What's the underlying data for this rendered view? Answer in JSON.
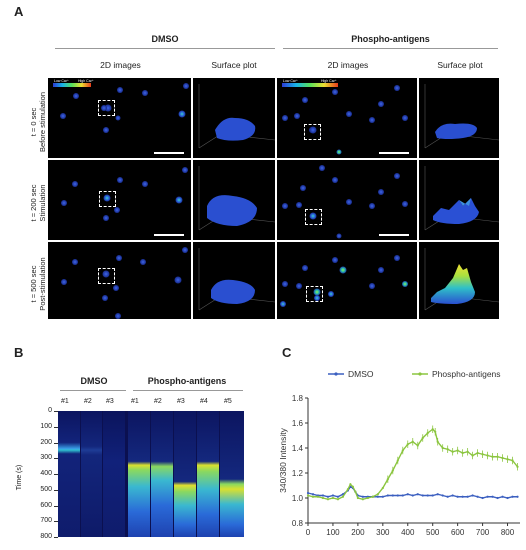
{
  "panel_a": {
    "label": "A",
    "groups": [
      {
        "title": "DMSO",
        "sub": [
          "2D images",
          "Surface plot"
        ]
      },
      {
        "title": "Phospho-antigens",
        "sub": [
          "2D images",
          "Surface plot"
        ]
      }
    ],
    "rows": [
      {
        "line1": "t = 0 sec",
        "line2": "Before stimulation"
      },
      {
        "line1": "t = 200 sec",
        "line2": "Stimulation"
      },
      {
        "line1": "t = 500 sec",
        "line2": "Post-stimulation"
      }
    ],
    "colorbar": {
      "low": "Low Ca²⁺",
      "high": "High Ca²⁺"
    }
  },
  "panel_b": {
    "label": "B",
    "groups": [
      {
        "title": "DMSO",
        "lanes": [
          "#1",
          "#2",
          "#3"
        ]
      },
      {
        "title": "Phospho-antigens",
        "lanes": [
          "#1",
          "#2",
          "#3",
          "#4",
          "#5"
        ]
      }
    ],
    "ylabel": "Time (s)",
    "yticks": [
      "0",
      "100",
      "200",
      "300",
      "400",
      "500",
      "600",
      "700",
      "800"
    ]
  },
  "panel_c": {
    "label": "C"
  },
  "chart_data": {
    "type": "line",
    "title": "",
    "xlabel": "",
    "ylabel": "340/380 Intensity",
    "xlim": [
      0,
      850
    ],
    "ylim": [
      0.8,
      1.8
    ],
    "xticks": [
      0,
      100,
      200,
      300,
      400,
      500,
      600,
      700,
      800
    ],
    "yticks": [
      0.8,
      1.0,
      1.2,
      1.4,
      1.6,
      1.8
    ],
    "legend_position": "top",
    "series": [
      {
        "name": "DMSO",
        "color": "#3b5fc0",
        "x": [
          0,
          20,
          40,
          60,
          80,
          100,
          120,
          140,
          160,
          170,
          180,
          190,
          200,
          220,
          240,
          260,
          280,
          300,
          320,
          340,
          360,
          380,
          400,
          420,
          440,
          460,
          480,
          500,
          520,
          540,
          560,
          580,
          600,
          620,
          640,
          660,
          680,
          700,
          720,
          740,
          760,
          780,
          800,
          820,
          840
        ],
        "y": [
          1.04,
          1.03,
          1.02,
          1.02,
          1.01,
          1.02,
          1.01,
          1.03,
          1.06,
          1.09,
          1.08,
          1.05,
          1.02,
          1.01,
          1.01,
          1.01,
          1.01,
          1.01,
          1.02,
          1.02,
          1.02,
          1.02,
          1.03,
          1.02,
          1.03,
          1.02,
          1.02,
          1.02,
          1.03,
          1.02,
          1.01,
          1.02,
          1.01,
          1.01,
          1.01,
          1.02,
          1.01,
          1.0,
          1.01,
          1.01,
          1.0,
          1.01,
          1.0,
          1.01,
          1.01
        ]
      },
      {
        "name": "Phospho-antigens",
        "color": "#8bc53f",
        "x": [
          0,
          20,
          40,
          60,
          80,
          100,
          120,
          140,
          160,
          170,
          180,
          190,
          200,
          220,
          240,
          260,
          280,
          300,
          320,
          340,
          360,
          380,
          400,
          420,
          440,
          460,
          480,
          500,
          510,
          520,
          540,
          560,
          580,
          600,
          620,
          640,
          660,
          680,
          700,
          720,
          740,
          760,
          780,
          800,
          820,
          840
        ],
        "y": [
          1.02,
          1.01,
          1.01,
          1.0,
          0.99,
          1.0,
          0.99,
          1.01,
          1.07,
          1.11,
          1.09,
          1.05,
          1.0,
          0.99,
          1.0,
          1.01,
          1.03,
          1.08,
          1.15,
          1.22,
          1.3,
          1.38,
          1.43,
          1.45,
          1.42,
          1.48,
          1.52,
          1.55,
          1.53,
          1.45,
          1.4,
          1.39,
          1.37,
          1.38,
          1.36,
          1.37,
          1.34,
          1.36,
          1.35,
          1.34,
          1.33,
          1.33,
          1.32,
          1.31,
          1.3,
          1.25
        ]
      }
    ]
  }
}
